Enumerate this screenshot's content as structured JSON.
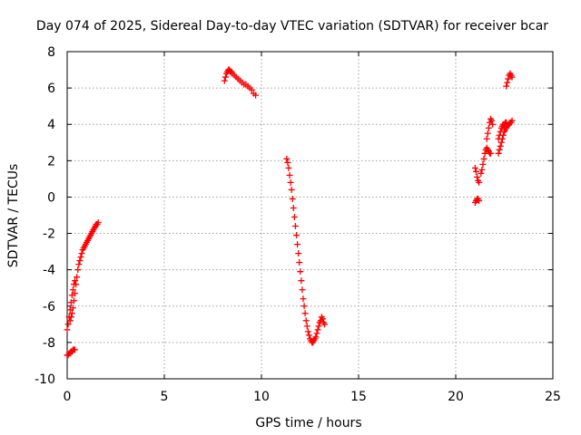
{
  "chart_data": {
    "type": "scatter",
    "title": "Day 074 of 2025, Sidereal Day-to-day VTEC variation (SDTVAR) for receiver bcar",
    "xlabel": "GPS time / hours",
    "ylabel": "SDTVAR / TECUs",
    "xlim": [
      0,
      25
    ],
    "ylim": [
      -10,
      8
    ],
    "xticks": [
      0,
      5,
      10,
      15,
      20,
      25
    ],
    "yticks": [
      -10,
      -8,
      -6,
      -4,
      -2,
      0,
      2,
      4,
      6,
      8
    ],
    "grid": true,
    "marker": "plus",
    "color": "#ff0000",
    "series": [
      {
        "name": "bcar",
        "x": [
          0.0,
          0.05,
          0.1,
          0.15,
          0.2,
          0.25,
          0.3,
          0.35,
          0.4,
          0.0,
          0.05,
          0.1,
          0.15,
          0.2,
          0.25,
          0.3,
          0.35,
          0.4,
          0.15,
          0.2,
          0.25,
          0.3,
          0.35,
          0.4,
          0.45,
          0.5,
          0.55,
          0.6,
          0.65,
          0.7,
          0.75,
          0.8,
          0.85,
          0.9,
          0.95,
          1.0,
          1.05,
          1.1,
          1.15,
          1.2,
          1.25,
          1.3,
          1.35,
          1.4,
          1.45,
          1.5,
          1.55,
          1.6,
          8.1,
          8.15,
          8.2,
          8.25,
          8.3,
          8.35,
          8.4,
          8.45,
          8.5,
          8.6,
          8.7,
          8.8,
          8.9,
          9.0,
          9.1,
          9.2,
          9.3,
          9.4,
          9.5,
          9.6,
          9.7,
          11.3,
          11.35,
          11.4,
          11.45,
          11.5,
          11.55,
          11.6,
          11.65,
          11.7,
          11.75,
          11.8,
          11.85,
          11.9,
          11.95,
          12.0,
          12.05,
          12.1,
          12.15,
          12.2,
          12.25,
          12.3,
          12.35,
          12.4,
          12.45,
          12.5,
          12.55,
          12.6,
          12.65,
          12.7,
          12.75,
          12.8,
          12.85,
          12.9,
          12.95,
          13.0,
          13.05,
          13.1,
          13.15,
          13.2,
          13.25,
          21.0,
          21.05,
          21.1,
          21.15,
          21.2,
          21.0,
          21.05,
          21.1,
          21.15,
          21.2,
          21.3,
          21.35,
          21.4,
          21.45,
          21.5,
          21.55,
          21.6,
          21.65,
          21.7,
          21.75,
          21.8,
          21.6,
          21.65,
          21.7,
          21.75,
          21.8,
          21.85,
          21.9,
          22.2,
          22.25,
          22.3,
          22.35,
          22.4,
          22.45,
          22.5,
          22.55,
          22.6,
          22.65,
          22.7,
          22.75,
          22.8,
          22.85,
          22.9,
          22.2,
          22.25,
          22.3,
          22.35,
          22.4,
          22.45,
          22.5,
          22.55,
          22.6,
          22.6,
          22.65,
          22.7,
          22.75,
          22.8,
          22.85,
          22.9
        ],
        "y": [
          -8.7,
          -8.7,
          -8.6,
          -8.6,
          -8.5,
          -8.5,
          -8.4,
          -8.4,
          -8.4,
          -7.3,
          -7.0,
          -6.6,
          -6.2,
          -5.8,
          -5.4,
          -5.1,
          -4.8,
          -4.6,
          -6.8,
          -6.6,
          -6.4,
          -6.1,
          -5.7,
          -5.3,
          -4.8,
          -4.4,
          -4.0,
          -3.7,
          -3.5,
          -3.3,
          -3.1,
          -2.9,
          -2.8,
          -2.7,
          -2.6,
          -2.5,
          -2.4,
          -2.3,
          -2.2,
          -2.1,
          -2.0,
          -1.9,
          -1.8,
          -1.7,
          -1.6,
          -1.5,
          -1.5,
          -1.4,
          6.4,
          6.6,
          6.8,
          6.9,
          7.0,
          7.0,
          6.9,
          6.9,
          6.8,
          6.7,
          6.6,
          6.5,
          6.4,
          6.3,
          6.2,
          6.2,
          6.1,
          6.0,
          5.9,
          5.7,
          5.6,
          2.1,
          1.9,
          1.6,
          1.2,
          0.8,
          0.4,
          -0.1,
          -0.6,
          -1.1,
          -1.6,
          -2.1,
          -2.6,
          -3.1,
          -3.6,
          -4.1,
          -4.6,
          -5.1,
          -5.6,
          -6.0,
          -6.4,
          -6.8,
          -7.1,
          -7.4,
          -7.6,
          -7.8,
          -7.9,
          -8.0,
          -8.0,
          -7.9,
          -7.8,
          -7.7,
          -7.5,
          -7.3,
          -7.1,
          -6.9,
          -6.8,
          -6.6,
          -6.7,
          -6.9,
          -7.0,
          1.6,
          1.4,
          1.1,
          0.9,
          0.8,
          -0.3,
          -0.2,
          -0.1,
          -0.1,
          -0.2,
          1.3,
          1.5,
          1.8,
          2.1,
          2.4,
          2.6,
          2.7,
          2.6,
          2.5,
          2.4,
          2.4,
          3.2,
          3.5,
          3.8,
          4.1,
          4.3,
          4.2,
          4.0,
          2.4,
          2.6,
          2.8,
          3.0,
          3.2,
          3.4,
          3.6,
          3.7,
          3.8,
          3.9,
          4.0,
          4.0,
          4.1,
          4.1,
          4.2,
          3.2,
          3.4,
          3.6,
          3.8,
          3.9,
          4.0,
          4.0,
          4.1,
          4.1,
          6.1,
          6.3,
          6.5,
          6.7,
          6.8,
          6.7,
          6.6
        ]
      }
    ]
  }
}
